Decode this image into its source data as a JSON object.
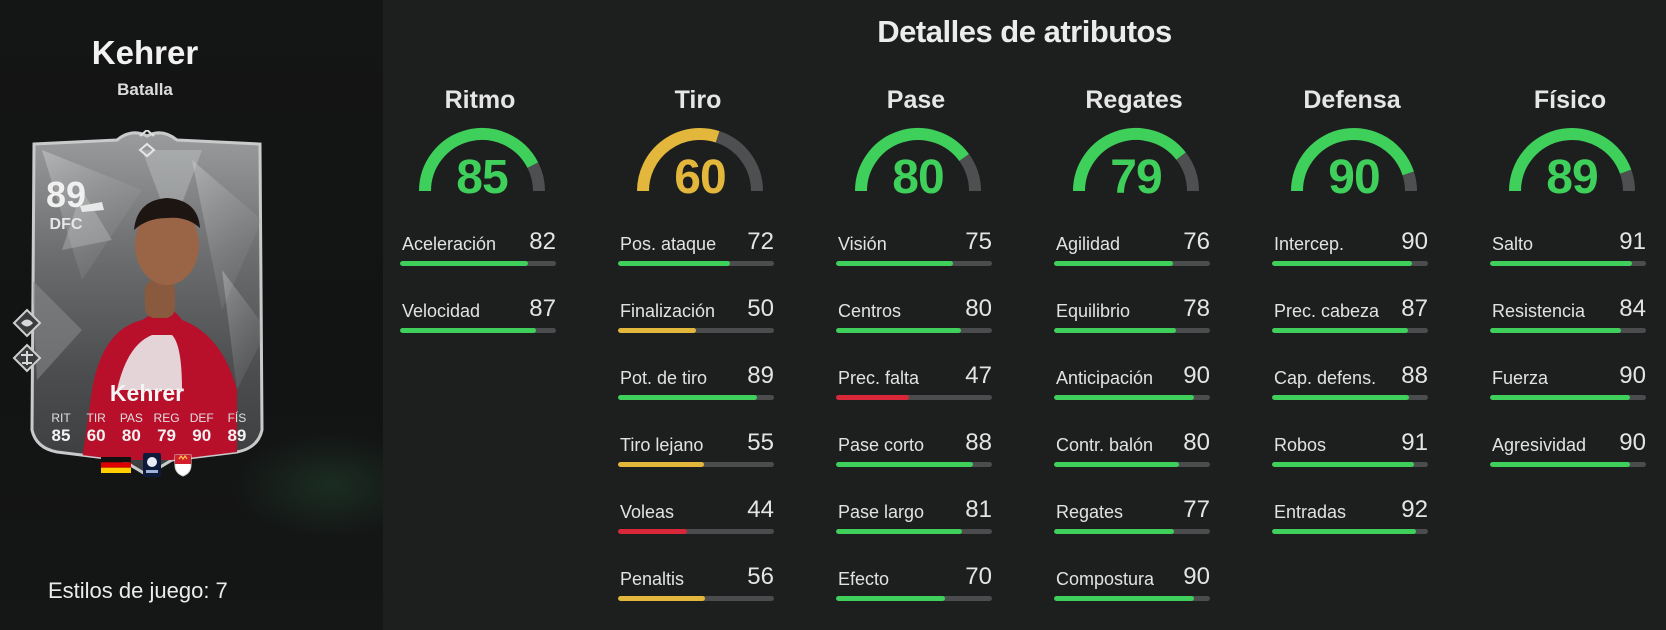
{
  "player": {
    "name": "Kehrer",
    "variant": "Batalla",
    "card": {
      "rating": "89",
      "position": "DFC",
      "name": "Kehrer",
      "stats": [
        {
          "label": "RIT",
          "value": "85"
        },
        {
          "label": "TIR",
          "value": "60"
        },
        {
          "label": "PAS",
          "value": "80"
        },
        {
          "label": "REG",
          "value": "79"
        },
        {
          "label": "DEF",
          "value": "90"
        },
        {
          "label": "FÍS",
          "value": "89"
        }
      ]
    },
    "playstyles": "Estilos de juego: 7"
  },
  "colors": {
    "green": "#3fcf5b",
    "yellow": "#e3b73b",
    "red": "#d9273a",
    "track": "#4a4c4d"
  },
  "icons": [
    "club-crest-icon",
    "league-badge-icon",
    "nation-flag-icon",
    "chemistry-style-icon",
    "boot-icon"
  ],
  "title": "Detalles de atributos",
  "categories": [
    {
      "name": "Ritmo",
      "value": 85,
      "attributes": [
        {
          "name": "Aceleración",
          "value": 82
        },
        {
          "name": "Velocidad",
          "value": 87
        }
      ]
    },
    {
      "name": "Tiro",
      "value": 60,
      "attributes": [
        {
          "name": "Pos. ataque",
          "value": 72
        },
        {
          "name": "Finalización",
          "value": 50
        },
        {
          "name": "Pot. de tiro",
          "value": 89
        },
        {
          "name": "Tiro lejano",
          "value": 55
        },
        {
          "name": "Voleas",
          "value": 44
        },
        {
          "name": "Penaltis",
          "value": 56
        }
      ]
    },
    {
      "name": "Pase",
      "value": 80,
      "attributes": [
        {
          "name": "Visión",
          "value": 75
        },
        {
          "name": "Centros",
          "value": 80
        },
        {
          "name": "Prec. falta",
          "value": 47
        },
        {
          "name": "Pase corto",
          "value": 88
        },
        {
          "name": "Pase largo",
          "value": 81
        },
        {
          "name": "Efecto",
          "value": 70
        }
      ]
    },
    {
      "name": "Regates",
      "value": 79,
      "attributes": [
        {
          "name": "Agilidad",
          "value": 76
        },
        {
          "name": "Equilibrio",
          "value": 78
        },
        {
          "name": "Anticipación",
          "value": 90
        },
        {
          "name": "Contr. balón",
          "value": 80
        },
        {
          "name": "Regates",
          "value": 77
        },
        {
          "name": "Compostura",
          "value": 90
        }
      ]
    },
    {
      "name": "Defensa",
      "value": 90,
      "attributes": [
        {
          "name": "Intercep.",
          "value": 90
        },
        {
          "name": "Prec. cabeza",
          "value": 87
        },
        {
          "name": "Cap. defens.",
          "value": 88
        },
        {
          "name": "Robos",
          "value": 91
        },
        {
          "name": "Entradas",
          "value": 92
        }
      ]
    },
    {
      "name": "Físico",
      "value": 89,
      "attributes": [
        {
          "name": "Salto",
          "value": 91
        },
        {
          "name": "Resistencia",
          "value": 84
        },
        {
          "name": "Fuerza",
          "value": 90
        },
        {
          "name": "Agresividad",
          "value": 90
        }
      ]
    }
  ]
}
